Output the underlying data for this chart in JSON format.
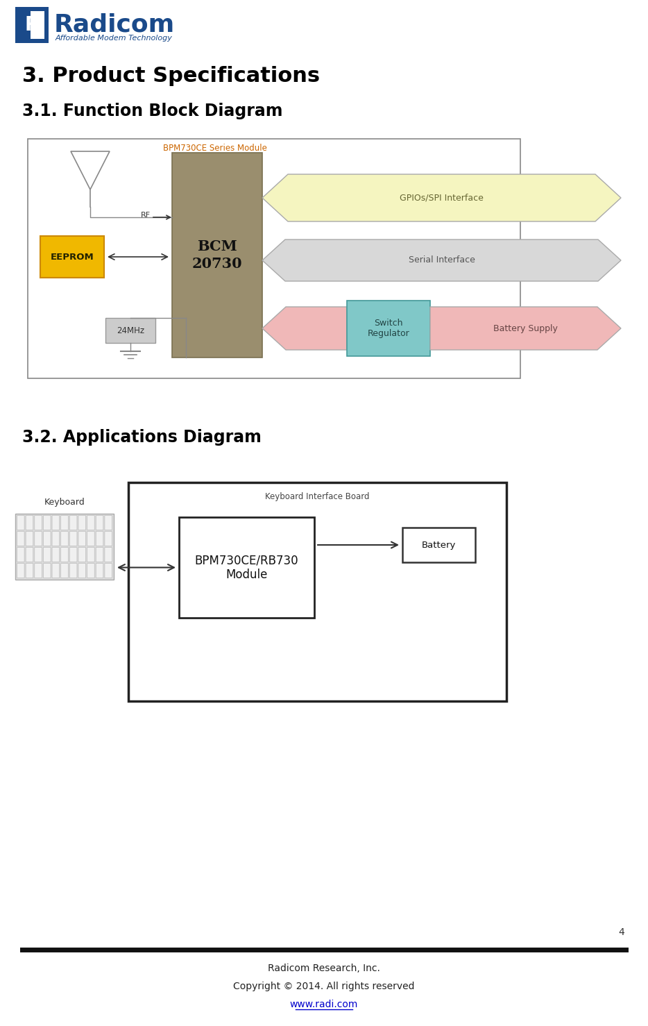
{
  "page_title": "3. Product Specifications",
  "section1_title": "3.1. Function Block Diagram",
  "section2_title": "3.2. Applications Diagram",
  "footer_line1": "Radicom Research, Inc.",
  "footer_line2": "Copyright © 2014. All rights reserved",
  "footer_url": "www.radi.com",
  "page_number": "4",
  "bg_color": "#ffffff",
  "title_color": "#000000",
  "title_fontsize": 22,
  "section_fontsize": 17,
  "footer_fontsize": 10,
  "url_color": "#0000cc",
  "logo_blue": "#1a4a8a",
  "logo_red": "#cc2222",
  "bpm_label_color": "#cc6600",
  "bcm_fill": "#9a8e6e",
  "bcm_edge": "#7a7050",
  "eeprom_fill": "#f0b800",
  "eeprom_edge": "#cc8800",
  "gpio_fill": "#f5f5c0",
  "gpio_edge": "#aaaaaa",
  "serial_fill": "#d8d8d8",
  "serial_edge": "#aaaaaa",
  "switch_fill": "#80c8c8",
  "switch_edge": "#449999",
  "battery_arrow_fill": "#f0b8b8",
  "battery_arrow_edge": "#aaaaaa",
  "mhz_fill": "#cccccc",
  "mhz_edge": "#999999"
}
